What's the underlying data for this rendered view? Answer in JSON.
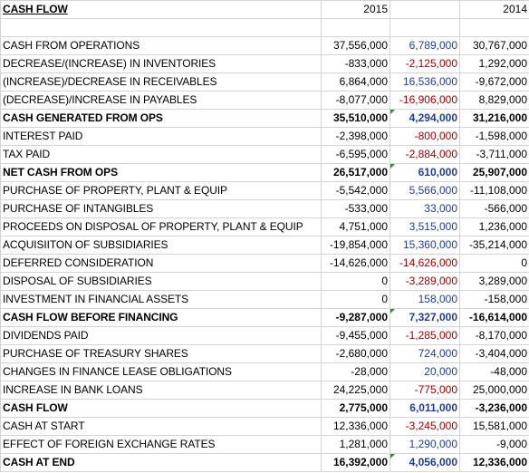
{
  "header": {
    "title": "CASH FLOW",
    "col_2015": "2015",
    "col_2014": "2014"
  },
  "rows": [
    {
      "label": "",
      "v2015": "",
      "diff": "",
      "v2014": "",
      "bold": false
    },
    {
      "label": "CASH FROM OPERATIONS",
      "v2015": "37,556,000",
      "diff": "6,789,000",
      "v2014": "30,767,000",
      "bold": false,
      "diff_neg": false
    },
    {
      "label": "DECREASE/(INCREASE) IN INVENTORIES",
      "v2015": "-833,000",
      "diff": "-2,125,000",
      "v2014": "1,292,000",
      "bold": false,
      "diff_neg": true
    },
    {
      "label": "(INCREASE)/DECREASE IN RECEIVABLES",
      "v2015": "6,864,000",
      "diff": "16,536,000",
      "v2014": "-9,672,000",
      "bold": false,
      "diff_neg": false
    },
    {
      "label": "(DECREASE)/INCREASE IN PAYABLES",
      "v2015": "-8,077,000",
      "diff": "-16,906,000",
      "v2014": "8,829,000",
      "bold": false,
      "diff_neg": true
    },
    {
      "label": "CASH GENERATED FROM OPS",
      "v2015": "35,510,000",
      "diff": "4,294,000",
      "v2014": "31,216,000",
      "bold": true,
      "diff_neg": false,
      "mark": true
    },
    {
      "label": "INTEREST PAID",
      "v2015": "-2,398,000",
      "diff": "-800,000",
      "v2014": "-1,598,000",
      "bold": false,
      "diff_neg": true
    },
    {
      "label": "TAX PAID",
      "v2015": "-6,595,000",
      "diff": "-2,884,000",
      "v2014": "-3,711,000",
      "bold": false,
      "diff_neg": true
    },
    {
      "label": "NET CASH FROM OPS",
      "v2015": "26,517,000",
      "diff": "610,000",
      "v2014": "25,907,000",
      "bold": true,
      "diff_neg": false,
      "mark": true
    },
    {
      "label": "PURCHASE OF PROPERTY, PLANT & EQUIP",
      "v2015": "-5,542,000",
      "diff": "5,566,000",
      "v2014": "-11,108,000",
      "bold": false,
      "diff_neg": false
    },
    {
      "label": "PURCHASE OF INTANGIBLES",
      "v2015": "-533,000",
      "diff": "33,000",
      "v2014": "-566,000",
      "bold": false,
      "diff_neg": false
    },
    {
      "label": "PROCEEDS ON DISPOSAL OF PROPERTY, PLANT & EQUIP",
      "v2015": "4,751,000",
      "diff": "3,515,000",
      "v2014": "1,236,000",
      "bold": false,
      "diff_neg": false
    },
    {
      "label": "ACQUISIITON OF SUBSIDIARIES",
      "v2015": "-19,854,000",
      "diff": "15,360,000",
      "v2014": "-35,214,000",
      "bold": false,
      "diff_neg": false
    },
    {
      "label": "DEFERRED CONSIDERATION",
      "v2015": "-14,626,000",
      "diff": "-14,626,000",
      "v2014": "0",
      "bold": false,
      "diff_neg": true
    },
    {
      "label": "DISPOSAL OF SUBSIDIARIES",
      "v2015": "0",
      "diff": "-3,289,000",
      "v2014": "3,289,000",
      "bold": false,
      "diff_neg": true
    },
    {
      "label": "INVESTMENT IN FINANCIAL ASSETS",
      "v2015": "0",
      "diff": "158,000",
      "v2014": "-158,000",
      "bold": false,
      "diff_neg": false
    },
    {
      "label": "CASH FLOW BEFORE FINANCING",
      "v2015": "-9,287,000",
      "diff": "7,327,000",
      "v2014": "-16,614,000",
      "bold": true,
      "diff_neg": false,
      "mark": true
    },
    {
      "label": "DIVIDENDS PAID",
      "v2015": "-9,455,000",
      "diff": "-1,285,000",
      "v2014": "-8,170,000",
      "bold": false,
      "diff_neg": true
    },
    {
      "label": "PURCHASE OF TREASURY SHARES",
      "v2015": "-2,680,000",
      "diff": "724,000",
      "v2014": "-3,404,000",
      "bold": false,
      "diff_neg": false
    },
    {
      "label": "CHANGES IN FINANCE LEASE OBLIGATIONS",
      "v2015": "-28,000",
      "diff": "20,000",
      "v2014": "-48,000",
      "bold": false,
      "diff_neg": false
    },
    {
      "label": "INCREASE IN BANK LOANS",
      "v2015": "24,225,000",
      "diff": "-775,000",
      "v2014": "25,000,000",
      "bold": false,
      "diff_neg": true
    },
    {
      "label": "CASH FLOW",
      "v2015": "2,775,000",
      "diff": "6,011,000",
      "v2014": "-3,236,000",
      "bold": true,
      "diff_neg": false
    },
    {
      "label": "CASH AT START",
      "v2015": "12,336,000",
      "diff": "-3,245,000",
      "v2014": "15,581,000",
      "bold": false,
      "diff_neg": true
    },
    {
      "label": "EFFECT OF FOREIGN EXCHANGE RATES",
      "v2015": "1,281,000",
      "diff": "1,290,000",
      "v2014": "-9,000",
      "bold": false,
      "diff_neg": false
    },
    {
      "label": "CASH AT END",
      "v2015": "16,392,000",
      "diff": "4,056,000",
      "v2014": "12,336,000",
      "bold": true,
      "diff_neg": false,
      "mark": true
    }
  ],
  "colors": {
    "diff_positive": "#1f3c9b",
    "diff_negative": "#a00000",
    "comment_marker": "#2e8b2e",
    "gridline": "#d4d4d4"
  }
}
